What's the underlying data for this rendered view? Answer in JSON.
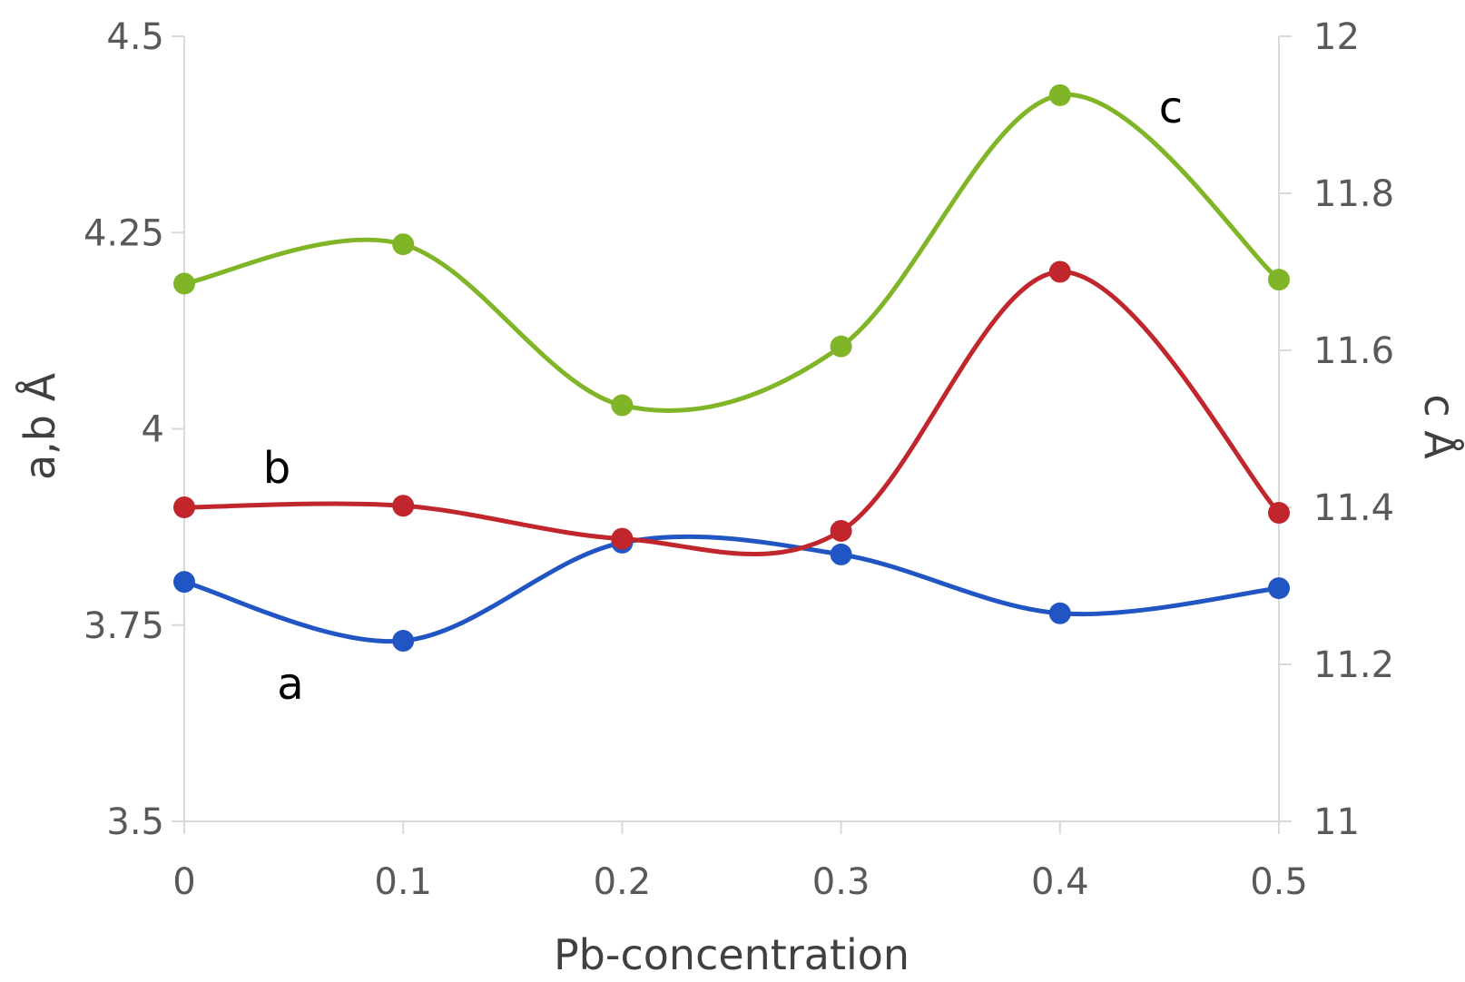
{
  "chart_data": {
    "type": "line",
    "x": [
      0,
      0.1,
      0.2,
      0.3,
      0.4,
      0.5
    ],
    "x_tick_labels": [
      "0",
      "0.1",
      "0.2",
      "0.3",
      "0.4",
      "0.5"
    ],
    "xlabel": "Pb-concentration",
    "xlim": [
      0,
      0.5
    ],
    "y_left": {
      "label": "a,b  Å",
      "lim": [
        3.5,
        4.5
      ],
      "tick_labels": [
        "3.5",
        "3.75",
        "4",
        "4.25",
        "4.5"
      ],
      "tick_values": [
        3.5,
        3.75,
        4.0,
        4.25,
        4.5
      ]
    },
    "y_right": {
      "label": "c  Å",
      "lim": [
        11,
        12
      ],
      "tick_labels": [
        "11",
        "11.2",
        "11.4",
        "11.6",
        "11.8",
        "12"
      ],
      "tick_values": [
        11.0,
        11.2,
        11.4,
        11.6,
        11.8,
        12.0
      ]
    },
    "grid": false,
    "series": [
      {
        "name": "a",
        "axis": "left",
        "color": "#2255c4",
        "values": [
          3.805,
          3.73,
          3.855,
          3.84,
          3.765,
          3.797
        ]
      },
      {
        "name": "b",
        "axis": "left",
        "color": "#c0262c",
        "values": [
          3.9,
          3.902,
          3.86,
          3.87,
          4.2,
          3.893
        ]
      },
      {
        "name": "c",
        "axis": "right",
        "color": "#7fb526",
        "values": [
          11.685,
          11.735,
          11.53,
          11.605,
          11.925,
          11.69
        ]
      }
    ]
  }
}
